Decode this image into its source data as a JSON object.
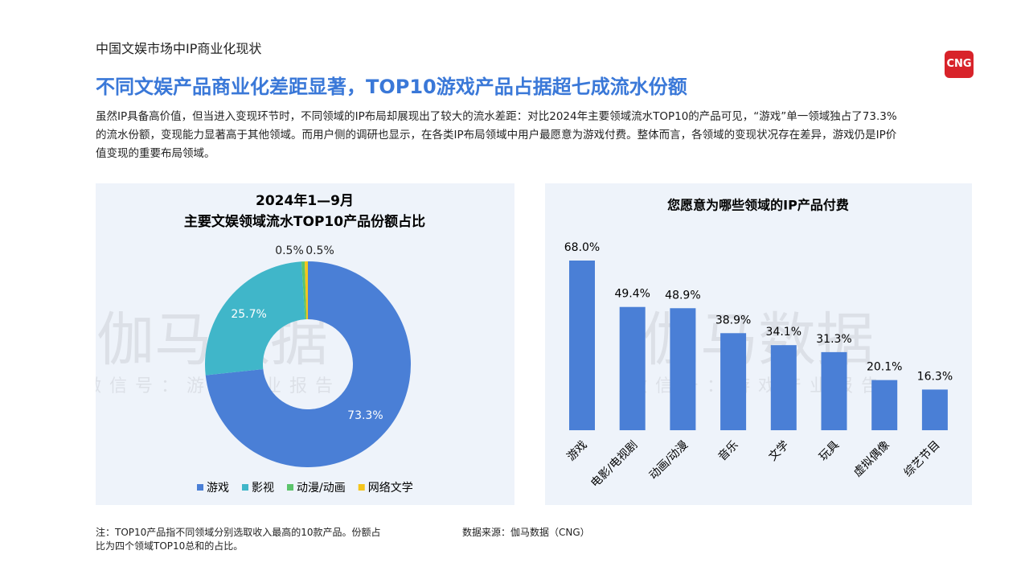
{
  "header": {
    "section": "中国文娱市场中IP商业化现状",
    "title": "不同文娱产品商业化差距显著，TOP10游戏产品占据超七成流水份额",
    "logo": "CNG"
  },
  "body": [
    "虽然IP具备高价值，但当进入变现环节时，不同领域的IP布局却展现出了较大的流水差距：对比2024年主要领域流水TOP10的产品可见，“游戏”单一领域独占了73.3%",
    "的流水份额，变现能力显著高于其他领域。而用户侧的调研也显示，在各类IP布局领域中用户最愿意为游戏付费。整体而言，各领域的变现状况存在差异，游戏仍是IP价",
    "值变现的重要布局领域。"
  ],
  "watermark": {
    "main": "伽马数据",
    "sub": "微信号：游戏产业报告"
  },
  "chart_data": [
    {
      "type": "pie",
      "title": [
        "2024年1—9月",
        "主要文娱领域流水TOP10产品份额占比"
      ],
      "categories": [
        "游戏",
        "影视",
        "动漫/动画",
        "网络文学"
      ],
      "values": [
        73.3,
        25.7,
        0.5,
        0.5
      ],
      "value_labels": [
        "73.3%",
        "25.7%",
        "0.5%",
        "0.5%"
      ],
      "colors": [
        "#4a7fd6",
        "#40b6c9",
        "#5cc46c",
        "#f5c51b"
      ],
      "donut": true,
      "legend": "bottom"
    },
    {
      "type": "bar",
      "title": [
        "您愿意为哪些领域的IP产品付费"
      ],
      "categories": [
        "游戏",
        "电影/电视剧",
        "动画/动漫",
        "音乐",
        "文学",
        "玩具",
        "虚拟偶像",
        "综艺节目"
      ],
      "values": [
        68.0,
        49.4,
        48.9,
        38.9,
        34.1,
        31.3,
        20.1,
        16.3
      ],
      "value_labels": [
        "68.0%",
        "49.4%",
        "48.9%",
        "38.9%",
        "34.1%",
        "31.3%",
        "20.1%",
        "16.3%"
      ],
      "color": "#4a7fd6"
    }
  ],
  "footer": {
    "note": [
      "注：TOP10产品指不同领域分别选取收入最高的10款产品。份额占",
      "比为四个领域TOP10总和的占比。"
    ],
    "source": "数据来源：伽马数据（CNG）"
  }
}
